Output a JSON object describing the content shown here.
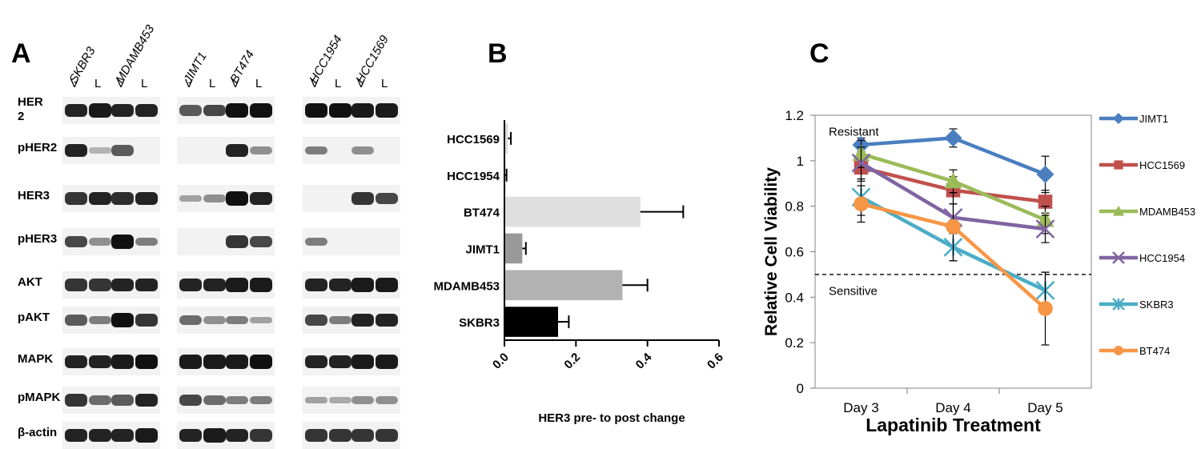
{
  "panelA": {
    "letter": "A",
    "groups": [
      {
        "cells": [
          "SKBR3",
          "MDAMB453"
        ]
      },
      {
        "cells": [
          "JIMT1",
          "BT474"
        ]
      },
      {
        "cells": [
          "HCC1954",
          "HCC1569"
        ]
      }
    ],
    "lane_labels": [
      "V",
      "L",
      "V",
      "L"
    ],
    "rows": [
      "HER 2",
      "pHER2",
      "HER3",
      "pHER3",
      "AKT",
      "pAKT",
      "MAPK",
      "pMAPK",
      "β-actin"
    ],
    "band_intensity": [
      [
        [
          0.9,
          0.95,
          0.9,
          0.9
        ],
        [
          0.6,
          0.7,
          1,
          1
        ],
        [
          1,
          1,
          0.95,
          0.95
        ]
      ],
      [
        [
          0.9,
          0.1,
          0.6,
          0
        ],
        [
          0,
          0,
          0.9,
          0.3
        ],
        [
          0.4,
          0,
          0.3,
          0
        ]
      ],
      [
        [
          0.8,
          0.9,
          0.85,
          0.9
        ],
        [
          0.2,
          0.3,
          1,
          0.9
        ],
        [
          0,
          0,
          0.8,
          0.7
        ]
      ],
      [
        [
          0.7,
          0.3,
          1,
          0.4
        ],
        [
          0,
          0,
          0.8,
          0.7
        ],
        [
          0.4,
          0,
          0,
          0
        ]
      ],
      [
        [
          0.8,
          0.8,
          0.9,
          0.9
        ],
        [
          0.9,
          0.9,
          0.95,
          0.95
        ],
        [
          0.9,
          0.9,
          0.95,
          0.95
        ]
      ],
      [
        [
          0.6,
          0.4,
          1,
          0.8
        ],
        [
          0.5,
          0.3,
          0.4,
          0.2
        ],
        [
          0.7,
          0.4,
          0.9,
          0.9
        ]
      ],
      [
        [
          0.9,
          0.9,
          0.95,
          1
        ],
        [
          0.95,
          0.95,
          0.95,
          1
        ],
        [
          0.9,
          0.9,
          0.95,
          0.95
        ]
      ],
      [
        [
          0.8,
          0.5,
          0.6,
          0.9
        ],
        [
          0.7,
          0.5,
          0.4,
          0.4
        ],
        [
          0.2,
          0.15,
          0.3,
          0.3
        ]
      ],
      [
        [
          0.9,
          0.9,
          0.9,
          0.95
        ],
        [
          0.9,
          0.95,
          0.9,
          0.8
        ],
        [
          0.8,
          0.8,
          0.8,
          0.8
        ]
      ]
    ]
  },
  "panelB": {
    "letter": "B"
  },
  "panelC": {
    "letter": "C"
  },
  "chart_data": [
    {
      "type": "bar",
      "orientation": "horizontal",
      "categories": [
        "HCC1569",
        "HCC1954",
        "BT474",
        "JIMT1",
        "MDAMB453",
        "SKBR3"
      ],
      "values": [
        0.01,
        0.002,
        0.38,
        0.05,
        0.33,
        0.15
      ],
      "errors": [
        0.008,
        0.004,
        0.12,
        0.01,
        0.07,
        0.03
      ],
      "colors": [
        "#dcdcdc",
        "#dcdcdc",
        "#dedede",
        "#999999",
        "#b2b2b2",
        "#000000"
      ],
      "xlabel": "HER3 pre- to post change",
      "xlim": [
        0,
        0.6
      ],
      "xticks": [
        "0.0",
        "0.2",
        "0.4",
        "0.6"
      ]
    },
    {
      "type": "line",
      "categories": [
        "Day 3",
        "Day 4",
        "Day 5"
      ],
      "xlabel": "Lapatinib Treatment",
      "ylabel": "Relative Cell Viability",
      "ylim": [
        0,
        1.2
      ],
      "yticks": [
        "0",
        "0.2",
        "0.4",
        "0.6",
        "0.8",
        "1",
        "1.2"
      ],
      "threshold": 0.5,
      "annotations": [
        "Resistant",
        "Sensitive"
      ],
      "series": [
        {
          "name": "JIMT1",
          "values": [
            1.07,
            1.1,
            0.94
          ],
          "errors": [
            0.03,
            0.04,
            0.08
          ],
          "color": "#4a7ebf",
          "marker": "diamond"
        },
        {
          "name": "HCC1569",
          "values": [
            0.97,
            0.87,
            0.82
          ],
          "errors": [
            0.06,
            0.06,
            0.05
          ],
          "color": "#c0504d",
          "marker": "square"
        },
        {
          "name": "MDAMB453",
          "values": [
            1.03,
            0.91,
            0.74
          ],
          "errors": [
            0.06,
            0.05,
            0.06
          ],
          "color": "#9bbb59",
          "marker": "triangle"
        },
        {
          "name": "HCC1954",
          "values": [
            0.99,
            0.75,
            0.7
          ],
          "errors": [
            0.07,
            0.06,
            0.06
          ],
          "color": "#8064a2",
          "marker": "x"
        },
        {
          "name": "SKBR3",
          "values": [
            0.84,
            0.62,
            0.43
          ],
          "errors": [
            0.08,
            0.06,
            0.08
          ],
          "color": "#4bacc6",
          "marker": "star"
        },
        {
          "name": "BT474",
          "values": [
            0.81,
            0.71,
            0.35
          ],
          "errors": [
            0.08,
            0.15,
            0.16
          ],
          "color": "#f79646",
          "marker": "circle"
        }
      ]
    }
  ]
}
